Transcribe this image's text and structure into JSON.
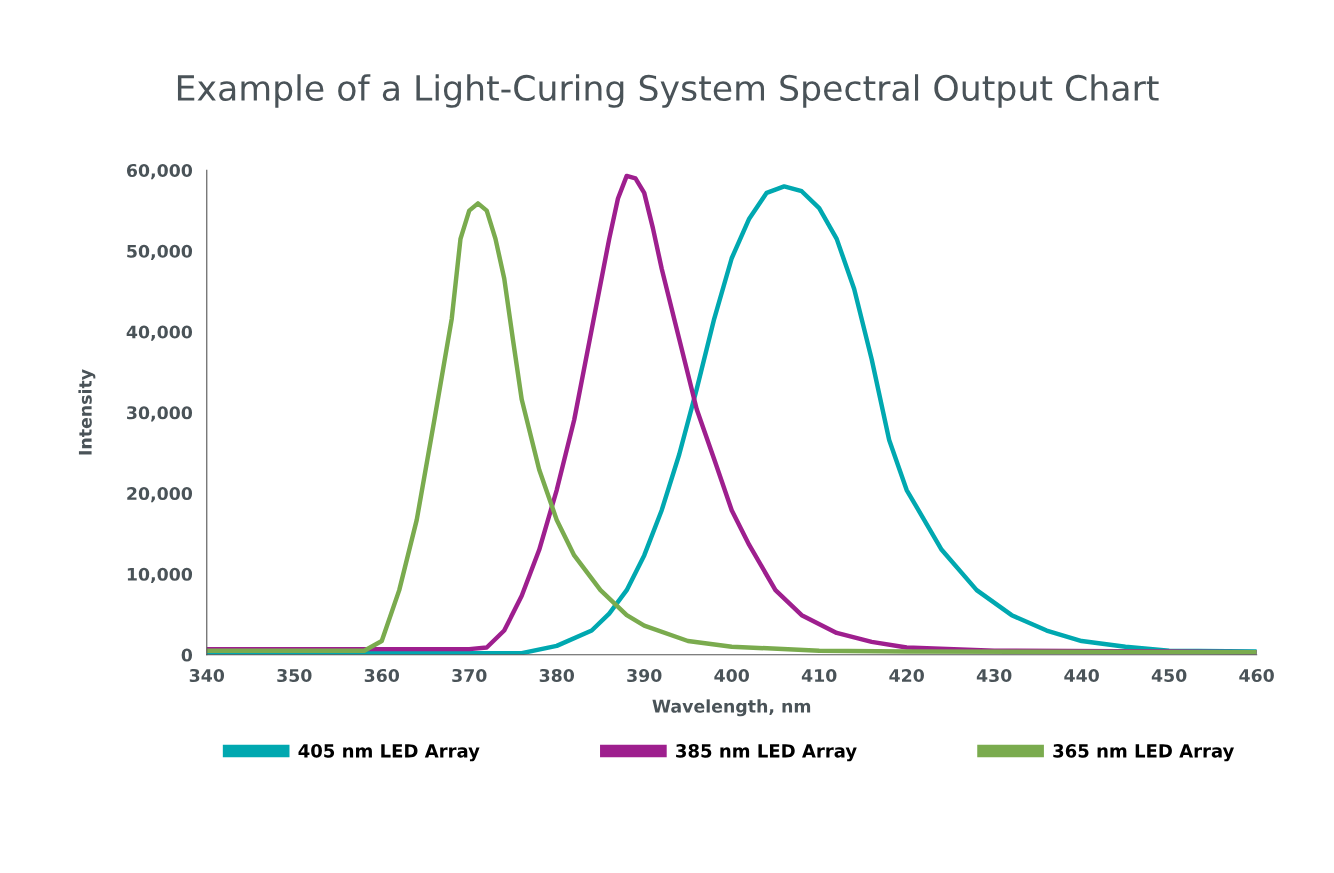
{
  "chart_data": {
    "type": "line",
    "title": "Example of a Light-Curing System Spectral Output Chart",
    "xlabel": "Wavelength, nm",
    "ylabel": "Intensity",
    "xlim": [
      340,
      460
    ],
    "xticks": [
      340,
      350,
      360,
      370,
      380,
      390,
      400,
      410,
      420,
      430,
      440,
      450,
      460
    ],
    "ylim": [
      0,
      60000
    ],
    "yticks": [
      {
        "value": 0,
        "label": "0"
      },
      {
        "value": 10000,
        "label": "10,000"
      },
      {
        "value": 20000,
        "label": "20,000"
      },
      {
        "value": 30000,
        "label": "30,000"
      },
      {
        "value": 40000,
        "label": "40,000"
      },
      {
        "value": 50000,
        "label": "50,000"
      },
      {
        "value": 60000,
        "label": "60,000"
      }
    ],
    "grid": false,
    "legend": "bottom",
    "marker": "none",
    "line_style": "solid",
    "series": [
      {
        "name": "405 nm LED Array",
        "color": "#00a8b0",
        "x": [
          340,
          376,
          380,
          384,
          386,
          388,
          390,
          392,
          394,
          396,
          398,
          400,
          402,
          404,
          406,
          408,
          410,
          412,
          414,
          416,
          418,
          420,
          424,
          428,
          432,
          436,
          440,
          445,
          450,
          460
        ],
        "values": [
          200,
          200,
          1100,
          3000,
          5100,
          8000,
          12300,
          17900,
          24800,
          32900,
          41600,
          49100,
          54000,
          57200,
          58000,
          57400,
          55300,
          51500,
          45300,
          36600,
          26600,
          20400,
          13000,
          8000,
          4900,
          3000,
          1700,
          1000,
          500,
          400
        ]
      },
      {
        "name": "385 nm LED Array",
        "color": "#9e1f8e",
        "x": [
          340,
          370,
          372,
          374,
          376,
          378,
          380,
          382,
          384,
          386,
          387,
          388,
          389,
          390,
          391,
          392,
          394,
          396,
          398,
          400,
          402,
          405,
          408,
          412,
          416,
          420,
          430,
          450,
          460
        ],
        "values": [
          700,
          700,
          900,
          3000,
          7300,
          13000,
          20400,
          29100,
          40300,
          51500,
          56500,
          59300,
          59000,
          57200,
          52800,
          47800,
          39100,
          30400,
          24200,
          17900,
          13600,
          8000,
          4900,
          2700,
          1600,
          900,
          500,
          400,
          300
        ]
      },
      {
        "name": "365 nm LED Array",
        "color": "#7aab4e",
        "x": [
          340,
          358,
          360,
          362,
          364,
          366,
          368,
          369,
          370,
          371,
          372,
          373,
          374,
          375,
          376,
          378,
          380,
          382,
          385,
          388,
          390,
          395,
          400,
          410,
          420,
          460
        ],
        "values": [
          500,
          500,
          1700,
          8000,
          16700,
          29000,
          41600,
          51500,
          55000,
          55900,
          55000,
          51500,
          46600,
          39000,
          31600,
          22900,
          16700,
          12300,
          8000,
          4900,
          3600,
          1700,
          1000,
          500,
          400,
          300
        ]
      }
    ]
  }
}
